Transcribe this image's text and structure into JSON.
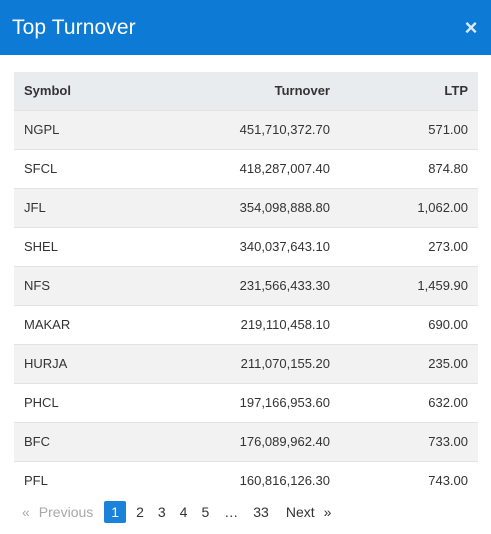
{
  "modal": {
    "title": "Top Turnover",
    "close_glyph": "×"
  },
  "table": {
    "headers": {
      "symbol": "Symbol",
      "turnover": "Turnover",
      "ltp": "LTP"
    },
    "rows": [
      {
        "symbol": "NGPL",
        "turnover": "451,710,372.70",
        "ltp": "571.00"
      },
      {
        "symbol": "SFCL",
        "turnover": "418,287,007.40",
        "ltp": "874.80"
      },
      {
        "symbol": "JFL",
        "turnover": "354,098,888.80",
        "ltp": "1,062.00"
      },
      {
        "symbol": "SHEL",
        "turnover": "340,037,643.10",
        "ltp": "273.00"
      },
      {
        "symbol": "NFS",
        "turnover": "231,566,433.30",
        "ltp": "1,459.90"
      },
      {
        "symbol": "MAKAR",
        "turnover": "219,110,458.10",
        "ltp": "690.00"
      },
      {
        "symbol": "HURJA",
        "turnover": "211,070,155.20",
        "ltp": "235.00"
      },
      {
        "symbol": "PHCL",
        "turnover": "197,166,953.60",
        "ltp": "632.00"
      },
      {
        "symbol": "BFC",
        "turnover": "176,089,962.40",
        "ltp": "733.00"
      },
      {
        "symbol": "PFL",
        "turnover": "160,816,126.30",
        "ltp": "743.00"
      }
    ]
  },
  "pagination": {
    "prev_arrow": "«",
    "prev_label": "Previous",
    "pages": [
      "1",
      "2",
      "3",
      "4",
      "5"
    ],
    "ellipsis": "…",
    "last_page": "33",
    "next_label": "Next",
    "next_arrow": "»",
    "current_page": "1"
  },
  "colors": {
    "header_bg": "#0d7ad6",
    "active_page_bg": "#1a82d9",
    "table_head_bg": "#e9ecef",
    "row_stripe": "#f2f2f2"
  }
}
